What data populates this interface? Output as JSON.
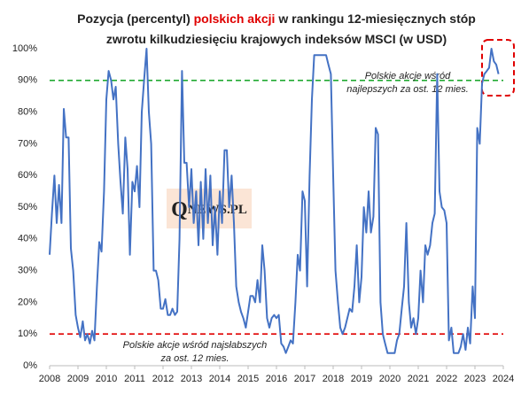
{
  "chart_data": {
    "type": "line",
    "title": [
      [
        {
          "text": "Pozycja (percentyl) "
        },
        {
          "text": "polskich akcji",
          "color": "#e00000"
        },
        {
          "text": " w rankingu 12-miesięcznych stóp"
        }
      ],
      [
        {
          "text": "zwrotu kilkudziesięciu krajowych indeksów MSCI (w USD)"
        }
      ]
    ],
    "logo": {
      "initial": "Q",
      "rest": "NEWS.PL"
    },
    "x": [
      2008.0,
      2008.08,
      2008.17,
      2008.25,
      2008.33,
      2008.42,
      2008.5,
      2008.58,
      2008.67,
      2008.75,
      2008.83,
      2008.92,
      2009.0,
      2009.08,
      2009.17,
      2009.25,
      2009.33,
      2009.42,
      2009.5,
      2009.58,
      2009.67,
      2009.75,
      2009.83,
      2009.92,
      2010.0,
      2010.08,
      2010.17,
      2010.25,
      2010.33,
      2010.42,
      2010.5,
      2010.58,
      2010.67,
      2010.75,
      2010.83,
      2010.92,
      2011.0,
      2011.08,
      2011.17,
      2011.25,
      2011.33,
      2011.42,
      2011.5,
      2011.58,
      2011.67,
      2011.75,
      2011.83,
      2011.92,
      2012.0,
      2012.08,
      2012.17,
      2012.25,
      2012.33,
      2012.42,
      2012.5,
      2012.58,
      2012.67,
      2012.75,
      2012.83,
      2012.92,
      2013.0,
      2013.08,
      2013.17,
      2013.25,
      2013.33,
      2013.42,
      2013.5,
      2013.58,
      2013.67,
      2013.75,
      2013.83,
      2013.92,
      2014.0,
      2014.08,
      2014.17,
      2014.25,
      2014.33,
      2014.42,
      2014.5,
      2014.58,
      2014.67,
      2014.75,
      2014.83,
      2014.92,
      2015.0,
      2015.08,
      2015.17,
      2015.25,
      2015.33,
      2015.42,
      2015.5,
      2015.58,
      2015.67,
      2015.75,
      2015.83,
      2015.92,
      2016.0,
      2016.08,
      2016.17,
      2016.25,
      2016.33,
      2016.42,
      2016.5,
      2016.58,
      2016.67,
      2016.75,
      2016.83,
      2016.92,
      2017.0,
      2017.08,
      2017.17,
      2017.25,
      2017.33,
      2017.42,
      2017.5,
      2017.58,
      2017.67,
      2017.75,
      2017.83,
      2017.92,
      2018.0,
      2018.08,
      2018.17,
      2018.25,
      2018.33,
      2018.42,
      2018.5,
      2018.58,
      2018.67,
      2018.75,
      2018.83,
      2018.92,
      2019.0,
      2019.08,
      2019.17,
      2019.25,
      2019.33,
      2019.42,
      2019.5,
      2019.58,
      2019.67,
      2019.75,
      2019.83,
      2019.92,
      2020.0,
      2020.08,
      2020.17,
      2020.25,
      2020.33,
      2020.42,
      2020.5,
      2020.58,
      2020.67,
      2020.75,
      2020.83,
      2020.92,
      2021.0,
      2021.08,
      2021.17,
      2021.25,
      2021.33,
      2021.42,
      2021.5,
      2021.58,
      2021.67,
      2021.75,
      2021.83,
      2021.92,
      2022.0,
      2022.08,
      2022.17,
      2022.25,
      2022.33,
      2022.42,
      2022.5,
      2022.58,
      2022.67,
      2022.75,
      2022.83,
      2022.92,
      2023.0,
      2023.08,
      2023.17,
      2023.25,
      2023.33,
      2023.42,
      2023.5,
      2023.58,
      2023.67,
      2023.75,
      2023.83
    ],
    "series": [
      {
        "name": "Pozycja polskich akcji",
        "color": "#4472c4",
        "values": [
          35,
          48,
          60,
          45,
          57,
          45,
          81,
          72,
          72,
          37,
          30,
          16,
          12,
          9,
          14,
          8,
          10,
          7,
          11,
          8,
          25,
          39,
          36,
          55,
          84,
          93,
          90,
          84,
          88,
          70,
          58,
          48,
          72,
          62,
          35,
          58,
          55,
          63,
          50,
          80,
          90,
          100,
          80,
          70,
          30,
          30,
          27,
          18,
          18,
          21,
          16,
          16,
          18,
          16,
          17,
          40,
          93,
          64,
          64,
          50,
          62,
          45,
          55,
          38,
          58,
          40,
          62,
          45,
          60,
          38,
          50,
          35,
          55,
          45,
          68,
          68,
          50,
          60,
          45,
          25,
          20,
          17,
          15,
          12,
          17,
          22,
          22,
          20,
          27,
          20,
          38,
          30,
          15,
          12,
          15,
          16,
          15,
          16,
          7,
          6,
          4,
          6,
          8,
          7,
          20,
          35,
          30,
          55,
          52,
          25,
          60,
          84,
          98,
          98,
          98,
          98,
          98,
          98,
          95,
          92,
          60,
          30,
          20,
          12,
          10,
          12,
          15,
          18,
          17,
          25,
          38,
          20,
          28,
          50,
          42,
          55,
          42,
          47,
          75,
          73,
          20,
          10,
          7,
          4,
          4,
          4,
          4,
          8,
          10,
          18,
          25,
          45,
          20,
          12,
          15,
          10,
          15,
          30,
          20,
          38,
          35,
          38,
          45,
          48,
          92,
          55,
          50,
          49,
          45,
          8,
          12,
          4,
          4,
          4,
          6,
          10,
          5,
          12,
          7,
          25,
          15,
          75,
          70,
          89,
          92,
          93,
          94,
          100,
          96,
          95,
          92
        ]
      }
    ],
    "xlim": [
      2008,
      2024
    ],
    "xticks": [
      2008,
      2009,
      2010,
      2011,
      2012,
      2013,
      2014,
      2015,
      2016,
      2017,
      2018,
      2019,
      2020,
      2021,
      2022,
      2023,
      2024
    ],
    "ylim": [
      0,
      100
    ],
    "yticks": [
      {
        "value": 0,
        "label": "0%"
      },
      {
        "value": 10,
        "label": "10%"
      },
      {
        "value": 20,
        "label": "20%"
      },
      {
        "value": 30,
        "label": "30%"
      },
      {
        "value": 40,
        "label": "40%"
      },
      {
        "value": 50,
        "label": "50%"
      },
      {
        "value": 60,
        "label": "60%"
      },
      {
        "value": 70,
        "label": "70%"
      },
      {
        "value": 80,
        "label": "80%"
      },
      {
        "value": 90,
        "label": "90%"
      },
      {
        "value": 100,
        "label": "100%"
      }
    ],
    "grid": false,
    "reference_lines": [
      {
        "value": 90,
        "color": "#22aa33",
        "label": [
          "Polskie akcje wśród",
          "najlepszych za ost. 12 mies."
        ]
      },
      {
        "value": 10,
        "color": "#e00000",
        "label": [
          "Polskie akcje wśród najsłabszych",
          "za ost. 12 mies."
        ]
      }
    ]
  }
}
